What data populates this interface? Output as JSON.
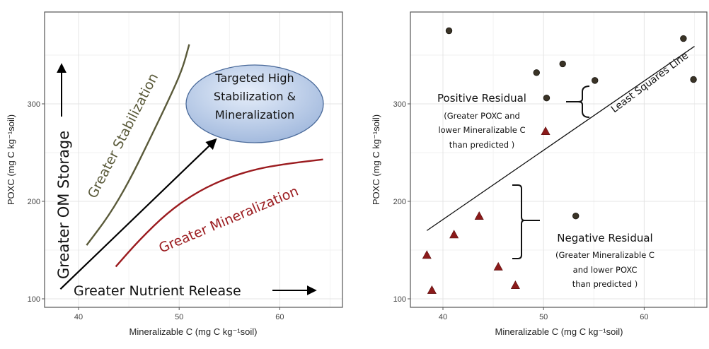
{
  "chart_data": [
    {
      "type": "line",
      "panel": "left",
      "title": "",
      "xlabel": "Mineralizable C (mg C kg⁻¹soil)",
      "ylabel": "POXC (mg C kg⁻¹soil)",
      "xlim": [
        36.5,
        66
      ],
      "ylim": [
        97,
        398
      ],
      "xticks": [
        "40",
        "50",
        "60"
      ],
      "yticks": [
        "100",
        "200",
        "300"
      ],
      "grid": true,
      "series": [
        {
          "name": "Greater Stabilization",
          "color": "#5a5a3a",
          "points": [
            [
              40.8,
              155
            ],
            [
              43,
              185
            ],
            [
              45,
              220
            ],
            [
              47,
              262
            ],
            [
              49,
              305
            ],
            [
              50.3,
              335
            ],
            [
              51,
              361
            ]
          ]
        },
        {
          "name": "Greater Mineralization",
          "color": "#9b1b1f",
          "points": [
            [
              43.7,
              133
            ],
            [
              46,
              160
            ],
            [
              49,
              190
            ],
            [
              52,
              211
            ],
            [
              55,
              225
            ],
            [
              58,
              234
            ],
            [
              61,
              239
            ],
            [
              64.3,
              243
            ]
          ]
        }
      ],
      "annotations": {
        "ellipse": [
          "Targeted High",
          "Stabilization &",
          "Mineralization"
        ],
        "stabilization_label": "Greater Stabilization",
        "mineralization_label": "Greater Mineralization",
        "om_storage_label": "Greater OM Storage",
        "nutrient_release_label": "Greater Nutrient Release"
      },
      "colors": {
        "ellipse_fill": "#b4c8e6",
        "ellipse_stroke": "#4a6a9a"
      }
    },
    {
      "type": "scatter",
      "panel": "right",
      "title": "",
      "xlabel": "Mineralizable C (mg C kg⁻¹soil)",
      "ylabel": "POXC (mg C kg⁻¹soil)",
      "xlim": [
        36.5,
        66
      ],
      "ylim": [
        97,
        398
      ],
      "xticks": [
        "40",
        "50",
        "60"
      ],
      "yticks": [
        "100",
        "200",
        "300"
      ],
      "grid": true,
      "series": [
        {
          "name": "Positive residual",
          "marker": "circle",
          "color": "#3a3326",
          "points": [
            [
              40.6,
              375
            ],
            [
              49.3,
              332
            ],
            [
              51.9,
              341
            ],
            [
              50.3,
              306
            ],
            [
              55.1,
              324
            ],
            [
              63.9,
              367
            ],
            [
              64.9,
              325
            ],
            [
              53.2,
              185
            ]
          ]
        },
        {
          "name": "Negative residual",
          "marker": "triangle",
          "color": "#8b1a1a",
          "points": [
            [
              50.2,
              272
            ],
            [
              43.6,
              185
            ],
            [
              41.1,
              166
            ],
            [
              38.4,
              145
            ],
            [
              45.5,
              133
            ],
            [
              38.9,
              109
            ],
            [
              47.2,
              114
            ]
          ]
        }
      ],
      "fit_line": {
        "label": "Least Squares Line",
        "from": [
          38.4,
          170
        ],
        "to": [
          65,
          359
        ]
      },
      "annotations": {
        "positive_title": "Positive Residual",
        "positive_desc": [
          "(Greater POXC and",
          "lower Mineralizable C",
          "than predicted )"
        ],
        "negative_title": "Negative Residual",
        "negative_desc": [
          "(Greater Mineralizable C",
          "and lower POXC",
          "than predicted )"
        ]
      }
    }
  ]
}
